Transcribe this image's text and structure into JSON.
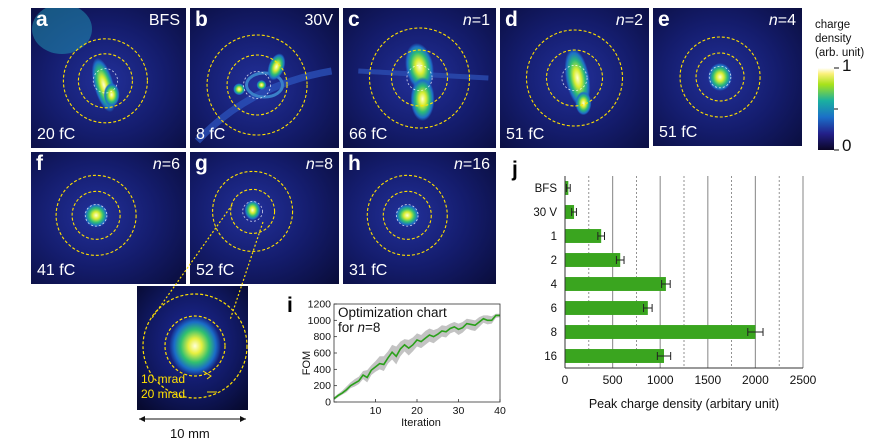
{
  "panels": [
    {
      "id": "a",
      "label": "a",
      "tag": "BFS",
      "charge": "20 fC"
    },
    {
      "id": "b",
      "label": "b",
      "tag": "30V",
      "charge": "8 fC"
    },
    {
      "id": "c",
      "label": "c",
      "tag_var": "n",
      "tag_val": "=1",
      "charge": "66 fC"
    },
    {
      "id": "d",
      "label": "d",
      "tag_var": "n",
      "tag_val": "=2",
      "charge": "51 fC"
    },
    {
      "id": "e",
      "label": "e",
      "tag_var": "n",
      "tag_val": "=4",
      "charge": "51 fC"
    },
    {
      "id": "f",
      "label": "f",
      "tag_var": "n",
      "tag_val": "=6",
      "charge": "41 fC"
    },
    {
      "id": "g",
      "label": "g",
      "tag_var": "n",
      "tag_val": "=8",
      "charge": "52 fC"
    },
    {
      "id": "h",
      "label": "h",
      "tag_var": "n",
      "tag_val": "=16",
      "charge": "31 fC"
    }
  ],
  "colorbar": {
    "title_lines": [
      "charge",
      "density",
      "(arb. unit)"
    ],
    "max_label": "1",
    "min_label": "0"
  },
  "zoom": {
    "ring_inner_label": "10 mrad",
    "ring_outer_label": "20 mrad",
    "scale_label": "10 mm"
  },
  "chart_data": [
    {
      "panel": "i",
      "type": "line",
      "title": "Optimization chart",
      "title_line2_prefix": "for ",
      "title_line2_var": "n",
      "title_line2_suffix": "=8",
      "xlabel": "Iteration",
      "ylabel": "FOM",
      "xlim": [
        0,
        40
      ],
      "ylim": [
        0,
        1200
      ],
      "xticks": [
        10,
        20,
        30,
        40
      ],
      "yticks": [
        0,
        200,
        400,
        600,
        800,
        1000,
        1200
      ],
      "series": [
        {
          "x": [
            0,
            1,
            2,
            3,
            4,
            5,
            6,
            7,
            8,
            9,
            10,
            11,
            12,
            13,
            14,
            15,
            16,
            17,
            18,
            19,
            20,
            21,
            22,
            23,
            24,
            25,
            26,
            27,
            28,
            29,
            30,
            31,
            32,
            33,
            34,
            35,
            36,
            37,
            38,
            39,
            40
          ],
          "y": [
            40,
            80,
            110,
            150,
            200,
            230,
            260,
            330,
            300,
            390,
            430,
            470,
            460,
            540,
            610,
            560,
            650,
            700,
            660,
            700,
            760,
            740,
            780,
            820,
            800,
            830,
            870,
            860,
            900,
            920,
            890,
            910,
            960,
            950,
            940,
            980,
            1020,
            1000,
            1000,
            1060,
            1060
          ],
          "lower": [
            20,
            60,
            90,
            120,
            170,
            190,
            220,
            280,
            240,
            330,
            370,
            400,
            380,
            470,
            520,
            460,
            560,
            620,
            570,
            620,
            680,
            660,
            700,
            740,
            720,
            760,
            800,
            790,
            840,
            860,
            820,
            850,
            900,
            880,
            870,
            920,
            970,
            950,
            960,
            1030,
            1040
          ],
          "upper": [
            60,
            100,
            140,
            190,
            240,
            280,
            310,
            380,
            390,
            450,
            500,
            560,
            560,
            620,
            700,
            680,
            740,
            770,
            760,
            790,
            840,
            820,
            870,
            900,
            880,
            900,
            940,
            930,
            960,
            980,
            960,
            980,
            1020,
            1010,
            1000,
            1040,
            1060,
            1060,
            1050,
            1080,
            1080
          ]
        }
      ]
    },
    {
      "panel": "j",
      "type": "bar",
      "orientation": "horizontal",
      "categories": [
        "BFS",
        "30 V",
        "1",
        "2",
        "4",
        "6",
        "8",
        "16"
      ],
      "values": [
        35,
        95,
        380,
        580,
        1060,
        870,
        2000,
        1040
      ],
      "errors": [
        20,
        25,
        35,
        40,
        45,
        45,
        80,
        70
      ],
      "xlabel": "Peak charge density (arbitary unit)",
      "ylabel": "",
      "xlim": [
        0,
        2500
      ],
      "xticks": [
        0,
        500,
        1000,
        1500,
        2000,
        2500
      ],
      "grid": "vertical",
      "bar_color": "#3aa51f"
    }
  ]
}
